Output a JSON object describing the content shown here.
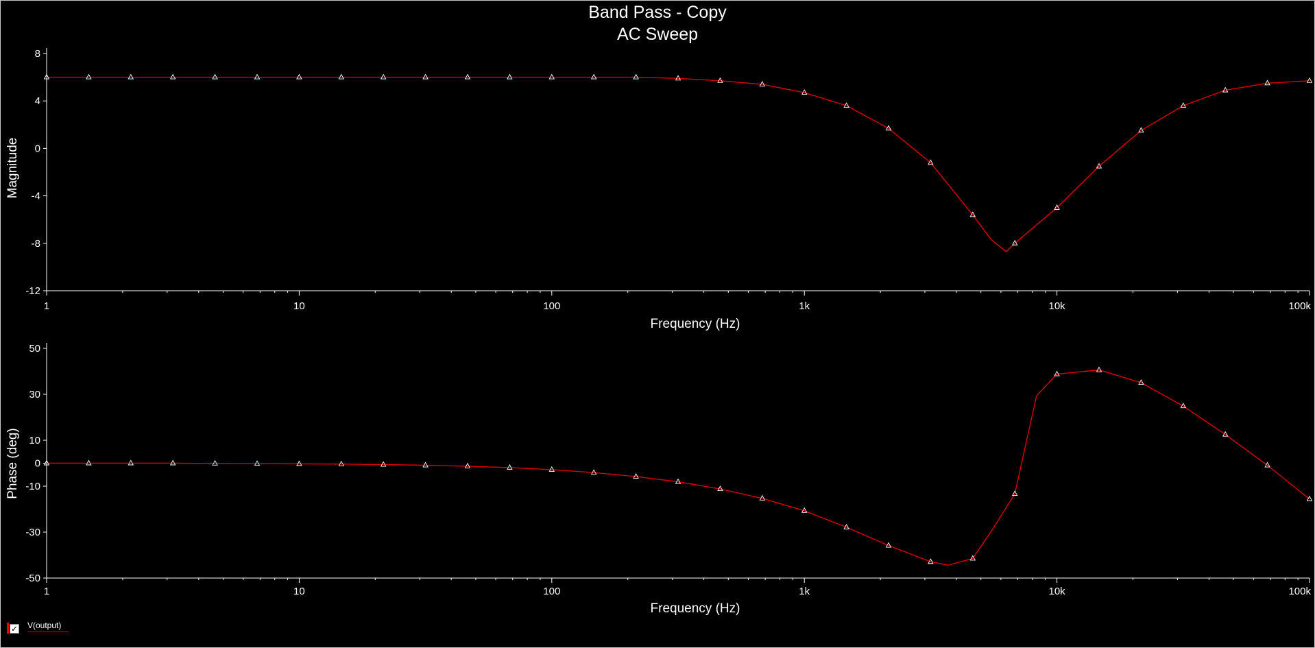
{
  "window": {
    "title_line1": "Band Pass - Copy",
    "title_line2": "AC Sweep"
  },
  "colors": {
    "background": "#000000",
    "trace": "#e00000",
    "axis": "#ffffff",
    "marker": "#ffffff"
  },
  "legend": {
    "label": "V(output)",
    "checked": true
  },
  "chart_data": [
    {
      "type": "line",
      "ylabel": "Magnitude",
      "xlabel": "Frequency (Hz)",
      "x_scale": "log",
      "xlim": [
        1,
        100000
      ],
      "ylim": [
        -12,
        8
      ],
      "yticks": [
        8,
        4,
        0,
        -4,
        -8,
        -12
      ],
      "xticks": [
        {
          "value": 1,
          "label": "1"
        },
        {
          "value": 10,
          "label": "10"
        },
        {
          "value": 100,
          "label": "100"
        },
        {
          "value": 1000,
          "label": "1k"
        },
        {
          "value": 10000,
          "label": "10k"
        },
        {
          "value": 100000,
          "label": "100k"
        }
      ],
      "series": [
        {
          "name": "V(output)",
          "x": [
            1,
            1.47,
            2.15,
            3.16,
            4.64,
            6.81,
            10,
            14.7,
            21.5,
            31.6,
            46.4,
            68.1,
            100,
            147,
            215,
            316,
            464,
            681,
            1000,
            1470,
            2150,
            3160,
            4640,
            5500,
            6300,
            6810,
            10000,
            14700,
            21500,
            31600,
            46400,
            68100,
            100000,
            126000
          ],
          "y": [
            6.0,
            6.0,
            6.0,
            6.0,
            6.0,
            6.0,
            6.0,
            6.0,
            6.0,
            6.0,
            6.0,
            6.0,
            6.0,
            6.0,
            6.0,
            5.9,
            5.7,
            5.4,
            4.7,
            3.6,
            1.7,
            -1.2,
            -5.6,
            -7.7,
            -8.7,
            -8.0,
            -5.0,
            -1.5,
            1.5,
            3.6,
            4.9,
            5.5,
            5.7,
            5.4
          ],
          "markers": true
        }
      ]
    },
    {
      "type": "line",
      "ylabel": "Phase (deg)",
      "xlabel": "Frequency (Hz)",
      "x_scale": "log",
      "xlim": [
        1,
        100000
      ],
      "ylim": [
        -50,
        50
      ],
      "yticks": [
        50,
        30,
        10,
        0,
        -10,
        -30,
        -50
      ],
      "xticks": [
        {
          "value": 1,
          "label": "1"
        },
        {
          "value": 10,
          "label": "10"
        },
        {
          "value": 100,
          "label": "100"
        },
        {
          "value": 1000,
          "label": "1k"
        },
        {
          "value": 10000,
          "label": "10k"
        },
        {
          "value": 100000,
          "label": "100k"
        }
      ],
      "series": [
        {
          "name": "V(output)",
          "x": [
            1,
            1.47,
            2.15,
            3.16,
            4.64,
            6.81,
            10,
            14.7,
            21.5,
            31.6,
            46.4,
            68.1,
            100,
            147,
            215,
            316,
            464,
            681,
            1000,
            1470,
            2150,
            3160,
            3700,
            4640,
            5500,
            6810,
            8300,
            10000,
            14700,
            21500,
            31600,
            46400,
            68100,
            100000,
            126000
          ],
          "y": [
            0.0,
            0.0,
            0.0,
            0.0,
            -0.1,
            -0.2,
            -0.3,
            -0.4,
            -0.6,
            -0.9,
            -1.3,
            -1.9,
            -2.8,
            -4.1,
            -5.8,
            -8.1,
            -11.2,
            -15.3,
            -20.7,
            -27.9,
            -35.8,
            -42.9,
            -44.4,
            -41.5,
            -29.6,
            -13.4,
            29.3,
            38.8,
            40.6,
            35.1,
            24.9,
            12.5,
            -0.9,
            -15.6,
            -25.3
          ],
          "markers": true
        }
      ]
    }
  ]
}
